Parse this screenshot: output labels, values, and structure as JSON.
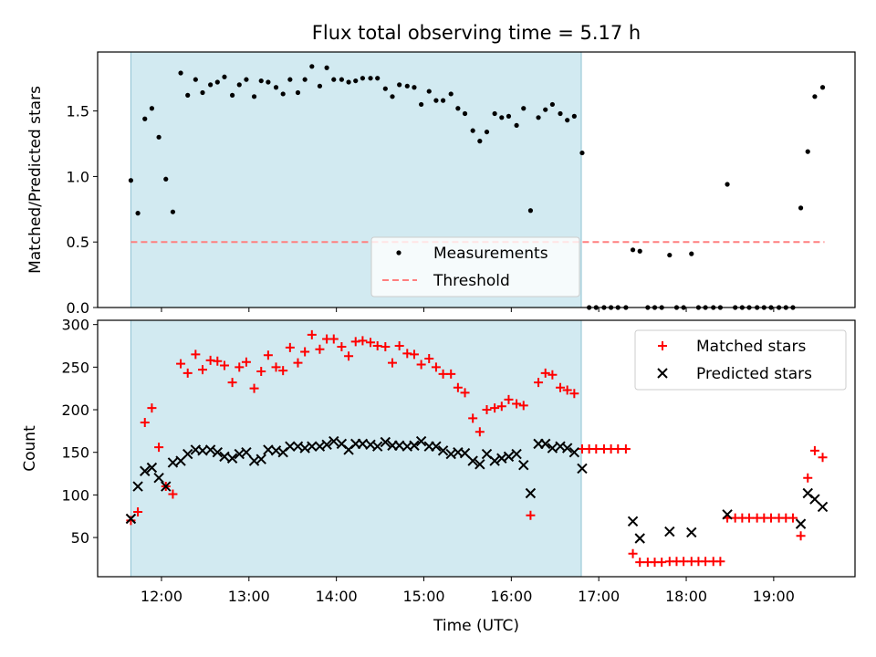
{
  "figure": {
    "title": "Flux total observing time = 5.17 h",
    "colors": {
      "shade": "#add8e6",
      "shade_edge": "#8fc3d3",
      "threshold": "#ff7f7f",
      "measurement": "#000000",
      "matched": "#ff0000",
      "predicted": "#000000"
    }
  },
  "chart_data": [
    {
      "type": "scatter",
      "ylabel": "Matched/Predicted stars",
      "xlim": [
        11.27,
        19.93
      ],
      "ylim": [
        0,
        1.95
      ],
      "yticks": [
        0.0,
        0.5,
        1.0,
        1.5
      ],
      "ytick_labels": [
        "0.0",
        "0.5",
        "1.0",
        "1.5"
      ],
      "x_ticks_unlabeled": [
        12,
        13,
        14,
        15,
        16,
        17,
        18,
        19
      ],
      "grid": false,
      "legend_position": "lower-center",
      "shaded_span": {
        "x_start": 11.65,
        "x_end": 16.8
      },
      "threshold": {
        "name": "Threshold",
        "value": 0.5,
        "x_range": [
          11.65,
          19.58
        ]
      },
      "series": [
        {
          "name": "Measurements",
          "x": [
            11.65,
            11.73,
            11.81,
            11.89,
            11.97,
            12.05,
            12.13,
            12.22,
            12.3,
            12.39,
            12.47,
            12.56,
            12.64,
            12.72,
            12.81,
            12.89,
            12.97,
            13.06,
            13.14,
            13.22,
            13.31,
            13.39,
            13.47,
            13.56,
            13.64,
            13.72,
            13.81,
            13.89,
            13.97,
            14.06,
            14.14,
            14.22,
            14.3,
            14.39,
            14.47,
            14.56,
            14.64,
            14.72,
            14.81,
            14.89,
            14.97,
            15.06,
            15.14,
            15.22,
            15.31,
            15.39,
            15.47,
            15.56,
            15.64,
            15.72,
            15.81,
            15.89,
            15.97,
            16.06,
            16.14,
            16.22,
            16.31,
            16.39,
            16.47,
            16.56,
            16.64,
            16.72,
            16.81,
            16.89,
            16.97,
            17.06,
            17.14,
            17.22,
            17.31,
            17.39,
            17.47,
            17.56,
            17.64,
            17.72,
            17.81,
            17.89,
            17.97,
            18.06,
            18.14,
            18.22,
            18.31,
            18.39,
            18.47,
            18.56,
            18.64,
            18.72,
            18.81,
            18.89,
            18.97,
            19.06,
            19.14,
            19.22,
            19.31,
            19.39,
            19.47,
            19.56
          ],
          "y": [
            0.97,
            0.72,
            1.44,
            1.52,
            1.3,
            0.98,
            0.73,
            1.79,
            1.62,
            1.74,
            1.64,
            1.7,
            1.72,
            1.76,
            1.62,
            1.7,
            1.74,
            1.61,
            1.73,
            1.72,
            1.68,
            1.63,
            1.74,
            1.64,
            1.74,
            1.84,
            1.69,
            1.83,
            1.74,
            1.74,
            1.72,
            1.73,
            1.75,
            1.75,
            1.75,
            1.67,
            1.61,
            1.7,
            1.69,
            1.68,
            1.55,
            1.65,
            1.58,
            1.58,
            1.63,
            1.52,
            1.48,
            1.35,
            1.27,
            1.34,
            1.48,
            1.45,
            1.46,
            1.39,
            1.52,
            0.74,
            1.45,
            1.51,
            1.55,
            1.48,
            1.43,
            1.46,
            1.18,
            0.0,
            0.0,
            0.0,
            0.0,
            0.0,
            0.0,
            0.44,
            0.43,
            0.0,
            0.0,
            0.0,
            0.4,
            0.0,
            0.0,
            0.41,
            0.0,
            0.0,
            0.0,
            0.0,
            0.94,
            0.0,
            0.0,
            0.0,
            0.0,
            0.0,
            0.0,
            0.0,
            0.0,
            0.0,
            0.76,
            1.19,
            1.61,
            1.68
          ]
        }
      ]
    },
    {
      "type": "scatter",
      "xlabel": "Time (UTC)",
      "ylabel": "Count",
      "xlim": [
        11.27,
        19.93
      ],
      "ylim": [
        4,
        305
      ],
      "yticks": [
        50,
        100,
        150,
        200,
        250,
        300
      ],
      "ytick_labels": [
        "50",
        "100",
        "150",
        "200",
        "250",
        "300"
      ],
      "xticks": [
        12,
        13,
        14,
        15,
        16,
        17,
        18,
        19
      ],
      "xtick_labels": [
        "12:00",
        "13:00",
        "14:00",
        "15:00",
        "16:00",
        "17:00",
        "18:00",
        "19:00"
      ],
      "grid": false,
      "legend_position": "top-right",
      "shaded_span": {
        "x_start": 11.65,
        "x_end": 16.8
      },
      "series": [
        {
          "name": "Matched stars",
          "marker": "+",
          "x": [
            11.65,
            11.73,
            11.81,
            11.89,
            11.97,
            12.05,
            12.13,
            12.22,
            12.3,
            12.39,
            12.47,
            12.56,
            12.64,
            12.72,
            12.81,
            12.89,
            12.97,
            13.06,
            13.14,
            13.22,
            13.31,
            13.39,
            13.47,
            13.56,
            13.64,
            13.72,
            13.81,
            13.89,
            13.97,
            14.06,
            14.14,
            14.22,
            14.3,
            14.39,
            14.47,
            14.56,
            14.64,
            14.72,
            14.81,
            14.89,
            14.97,
            15.06,
            15.14,
            15.22,
            15.31,
            15.39,
            15.47,
            15.56,
            15.64,
            15.72,
            15.81,
            15.89,
            15.97,
            16.06,
            16.14,
            16.22,
            16.31,
            16.39,
            16.47,
            16.56,
            16.64,
            16.72,
            16.81,
            16.89,
            16.97,
            17.06,
            17.14,
            17.22,
            17.31,
            17.39,
            17.47,
            17.56,
            17.64,
            17.72,
            17.81,
            17.89,
            17.97,
            18.06,
            18.14,
            18.22,
            18.31,
            18.39,
            18.47,
            18.56,
            18.64,
            18.72,
            18.81,
            18.89,
            18.97,
            19.06,
            19.14,
            19.22,
            19.31,
            19.39,
            19.47,
            19.56
          ],
          "y": [
            70,
            80,
            185,
            202,
            156,
            110,
            101,
            254,
            243,
            265,
            247,
            258,
            257,
            252,
            232,
            250,
            256,
            225,
            245,
            264,
            250,
            246,
            273,
            255,
            268,
            288,
            271,
            283,
            283,
            274,
            263,
            280,
            281,
            279,
            275,
            274,
            255,
            275,
            266,
            265,
            253,
            260,
            250,
            242,
            242,
            226,
            220,
            190,
            174,
            200,
            202,
            204,
            212,
            207,
            205,
            76,
            232,
            243,
            241,
            226,
            223,
            219,
            154,
            154,
            154,
            154,
            154,
            154,
            154,
            31,
            21,
            21,
            21,
            21,
            22,
            22,
            22,
            22,
            22,
            22,
            22,
            22,
            73,
            73,
            73,
            73,
            73,
            73,
            73,
            73,
            73,
            73,
            52,
            120,
            152,
            144
          ]
        },
        {
          "name": "Predicted stars",
          "marker": "x",
          "x": [
            11.65,
            11.73,
            11.81,
            11.89,
            11.97,
            12.05,
            12.13,
            12.22,
            12.3,
            12.39,
            12.47,
            12.56,
            12.64,
            12.72,
            12.81,
            12.89,
            12.97,
            13.06,
            13.14,
            13.22,
            13.31,
            13.39,
            13.47,
            13.56,
            13.64,
            13.72,
            13.81,
            13.89,
            13.97,
            14.06,
            14.14,
            14.22,
            14.3,
            14.39,
            14.47,
            14.56,
            14.64,
            14.72,
            14.81,
            14.89,
            14.97,
            15.06,
            15.14,
            15.22,
            15.31,
            15.39,
            15.47,
            15.56,
            15.64,
            15.72,
            15.81,
            15.89,
            15.97,
            16.06,
            16.14,
            16.22,
            16.31,
            16.39,
            16.47,
            16.56,
            16.64,
            16.72,
            16.81,
            17.39,
            17.47,
            17.81,
            18.06,
            18.47,
            19.31,
            19.39,
            19.47,
            19.56
          ],
          "y": [
            72,
            110,
            128,
            132,
            120,
            110,
            138,
            140,
            148,
            153,
            152,
            153,
            150,
            145,
            143,
            148,
            150,
            140,
            142,
            153,
            152,
            150,
            157,
            157,
            155,
            157,
            157,
            159,
            163,
            160,
            153,
            160,
            160,
            159,
            157,
            162,
            158,
            158,
            157,
            158,
            163,
            157,
            157,
            152,
            148,
            150,
            149,
            140,
            136,
            148,
            140,
            143,
            145,
            148,
            135,
            102,
            160,
            160,
            155,
            157,
            155,
            150,
            131,
            69,
            49,
            57,
            56,
            77,
            66,
            102,
            95,
            86
          ]
        }
      ]
    }
  ]
}
